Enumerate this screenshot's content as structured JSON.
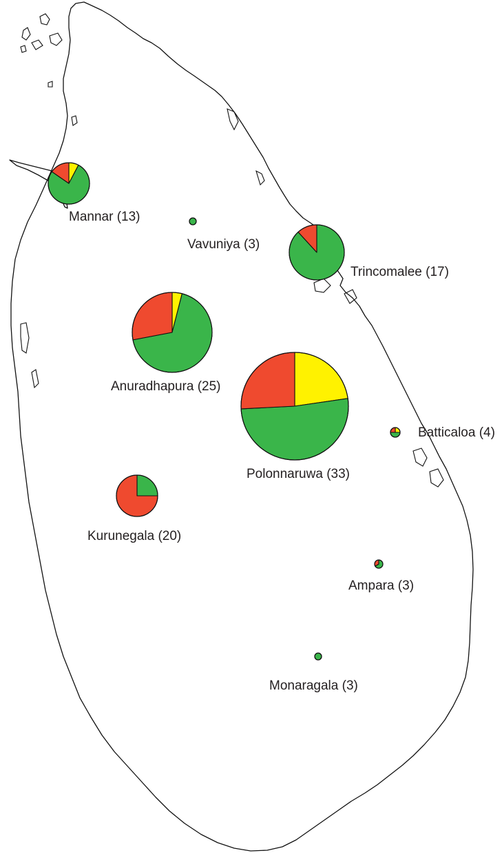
{
  "map": {
    "region": "Sri Lanka",
    "colors": {
      "green": "#3ab54a",
      "red": "#ef4a2f",
      "yellow": "#fff200",
      "coastline": "#111111",
      "label": "#231f20"
    },
    "districts": [
      {
        "name": "Mannar",
        "label": "Mannar (13)",
        "count": 13,
        "slices": [
          {
            "color": "yellow",
            "fraction": 0.077
          },
          {
            "color": "green",
            "fraction": 0.769
          },
          {
            "color": "red",
            "fraction": 0.154
          }
        ]
      },
      {
        "name": "Vavuniya",
        "label": "Vavuniya (3)",
        "count": 3,
        "slices": [
          {
            "color": "green",
            "fraction": 1.0
          }
        ]
      },
      {
        "name": "Trincomalee",
        "label": "Trincomalee (17)",
        "count": 17,
        "slices": [
          {
            "color": "green",
            "fraction": 0.882
          },
          {
            "color": "red",
            "fraction": 0.118
          }
        ]
      },
      {
        "name": "Anuradhapura",
        "label": "Anuradhapura (25)",
        "count": 25,
        "slices": [
          {
            "color": "yellow",
            "fraction": 0.04
          },
          {
            "color": "green",
            "fraction": 0.68
          },
          {
            "color": "red",
            "fraction": 0.28
          }
        ]
      },
      {
        "name": "Polonnaruwa",
        "label": "Polonnaruwa (33)",
        "count": 33,
        "slices": [
          {
            "color": "yellow",
            "fraction": 0.227
          },
          {
            "color": "green",
            "fraction": 0.515
          },
          {
            "color": "red",
            "fraction": 0.258
          }
        ]
      },
      {
        "name": "Batticaloa",
        "label": "Batticaloa (4)",
        "count": 4,
        "slices": [
          {
            "color": "yellow",
            "fraction": 0.25
          },
          {
            "color": "green",
            "fraction": 0.5
          },
          {
            "color": "red",
            "fraction": 0.25
          }
        ]
      },
      {
        "name": "Kurunegala",
        "label": "Kurunegala (20)",
        "count": 20,
        "slices": [
          {
            "color": "green",
            "fraction": 0.25
          },
          {
            "color": "red",
            "fraction": 0.75
          }
        ]
      },
      {
        "name": "Ampara",
        "label": "Ampara (3)",
        "count": 3,
        "slices": [
          {
            "color": "green",
            "fraction": 0.667
          },
          {
            "color": "red",
            "fraction": 0.333
          }
        ]
      },
      {
        "name": "Monaragala",
        "label": "Monaragala (3)",
        "count": 3,
        "slices": [
          {
            "color": "green",
            "fraction": 1.0
          }
        ]
      }
    ]
  }
}
